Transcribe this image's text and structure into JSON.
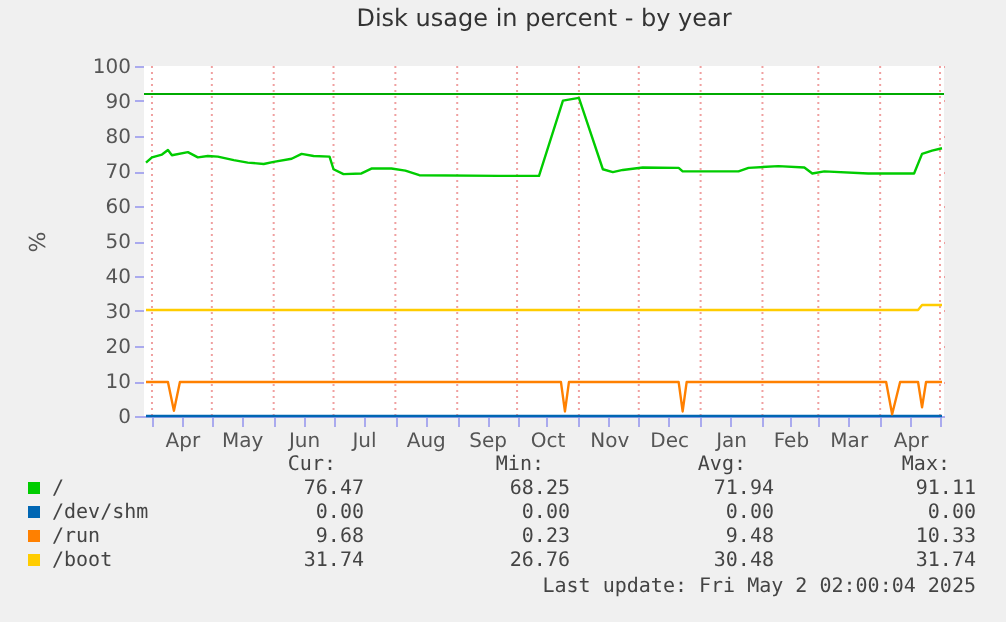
{
  "chart_data": {
    "type": "line",
    "title": "Disk usage in percent - by year",
    "ylabel": "%",
    "xlim": [
      "2024-03-28",
      "2025-05-03"
    ],
    "xticks": [
      {
        "value": "2024-04-01",
        "label": null
      },
      {
        "value": "2024-04-16",
        "label": "Apr"
      },
      {
        "value": "2024-05-01",
        "label": null
      },
      {
        "value": "2024-05-16",
        "label": "May"
      },
      {
        "value": "2024-06-01",
        "label": null
      },
      {
        "value": "2024-06-16",
        "label": "Jun"
      },
      {
        "value": "2024-07-01",
        "label": null
      },
      {
        "value": "2024-07-16",
        "label": "Jul"
      },
      {
        "value": "2024-08-01",
        "label": null
      },
      {
        "value": "2024-08-16",
        "label": "Aug"
      },
      {
        "value": "2024-09-01",
        "label": null
      },
      {
        "value": "2024-09-16",
        "label": "Sep"
      },
      {
        "value": "2024-10-01",
        "label": null
      },
      {
        "value": "2024-10-16",
        "label": "Oct"
      },
      {
        "value": "2024-11-01",
        "label": null
      },
      {
        "value": "2024-11-16",
        "label": "Nov"
      },
      {
        "value": "2024-12-01",
        "label": null
      },
      {
        "value": "2024-12-16",
        "label": "Dec"
      },
      {
        "value": "2025-01-01",
        "label": null
      },
      {
        "value": "2025-01-16",
        "label": "Jan"
      },
      {
        "value": "2025-02-01",
        "label": null
      },
      {
        "value": "2025-02-15",
        "label": "Feb"
      },
      {
        "value": "2025-03-01",
        "label": null
      },
      {
        "value": "2025-03-16",
        "label": "Mar"
      },
      {
        "value": "2025-04-01",
        "label": null
      },
      {
        "value": "2025-04-16",
        "label": "Apr"
      },
      {
        "value": "2025-05-01",
        "label": null
      }
    ],
    "ylim": [
      0,
      100
    ],
    "yticks": [
      0,
      10,
      20,
      30,
      40,
      50,
      60,
      70,
      80,
      90,
      100
    ],
    "grid": true,
    "legend": "bottom",
    "marker": "none",
    "line_style": "solid",
    "ref_lines": [
      {
        "axis": "y",
        "value": 92,
        "color": "#00aa00"
      }
    ],
    "series": [
      {
        "name": "/",
        "color": "#00cc00",
        "x": [
          "2024-03-29",
          "2024-04-01",
          "2024-04-06",
          "2024-04-09",
          "2024-04-11",
          "2024-04-19",
          "2024-04-24",
          "2024-04-29",
          "2024-05-04",
          "2024-05-12",
          "2024-05-19",
          "2024-05-27",
          "2024-06-01",
          "2024-06-10",
          "2024-06-15",
          "2024-06-21",
          "2024-06-29",
          "2024-07-01",
          "2024-07-06",
          "2024-07-15",
          "2024-07-20",
          "2024-07-30",
          "2024-08-06",
          "2024-08-13",
          "2024-09-22",
          "2024-10-12",
          "2024-10-24",
          "2024-11-01",
          "2024-11-13",
          "2024-11-18",
          "2024-11-23",
          "2024-12-03",
          "2024-12-21",
          "2024-12-23",
          "2025-01-20",
          "2025-01-25",
          "2025-02-09",
          "2025-02-22",
          "2025-02-26",
          "2025-03-04",
          "2025-03-26",
          "2025-04-18",
          "2025-04-22",
          "2025-04-27",
          "2025-05-02"
        ],
        "values": [
          72.4,
          73.9,
          74.7,
          76.0,
          74.5,
          75.4,
          73.9,
          74.3,
          74.1,
          73.1,
          72.4,
          72.0,
          72.6,
          73.5,
          74.9,
          74.3,
          74.1,
          70.5,
          69.1,
          69.3,
          70.7,
          70.7,
          70.1,
          68.8,
          68.6,
          68.6,
          90.1,
          90.9,
          70.5,
          69.7,
          70.3,
          71.0,
          70.9,
          69.9,
          69.9,
          70.9,
          71.4,
          71.0,
          69.3,
          69.9,
          69.3,
          69.3,
          74.9,
          75.8,
          76.5
        ]
      },
      {
        "name": "/dev/shm",
        "color": "#0066b3",
        "x": [
          "2024-03-29",
          "2025-05-02"
        ],
        "values": [
          0,
          0
        ]
      },
      {
        "name": "/run",
        "color": "#ff8000",
        "x": [
          "2024-03-29",
          "2024-04-09",
          "2024-04-12",
          "2024-04-15",
          "2024-10-23",
          "2024-10-25",
          "2024-10-27",
          "2024-12-21",
          "2024-12-23",
          "2024-12-25",
          "2025-04-04",
          "2025-04-07",
          "2025-04-11",
          "2025-04-20",
          "2025-04-22",
          "2025-04-24",
          "2025-05-02"
        ],
        "values": [
          9.7,
          9.7,
          1.5,
          9.7,
          9.7,
          1.3,
          9.7,
          9.7,
          1.3,
          9.7,
          9.7,
          0.5,
          9.7,
          9.7,
          2.5,
          9.7,
          9.7
        ]
      },
      {
        "name": "/boot",
        "color": "#ffcc00",
        "x": [
          "2024-03-29",
          "2025-04-20",
          "2025-04-22",
          "2025-05-02"
        ],
        "values": [
          30.3,
          30.3,
          31.7,
          31.7
        ]
      }
    ],
    "annotations": [
      "Cur:",
      "Min:",
      "Avg:",
      "Max:",
      "76.47",
      "68.25",
      "71.94",
      "91.11",
      "0.00",
      "0.00",
      "0.00",
      "0.00",
      "9.68",
      "0.23",
      "9.48",
      "10.33",
      "31.74",
      "26.76",
      "30.48",
      "31.74",
      "Last update: Fri May  2 02:00:04 2025"
    ]
  }
}
